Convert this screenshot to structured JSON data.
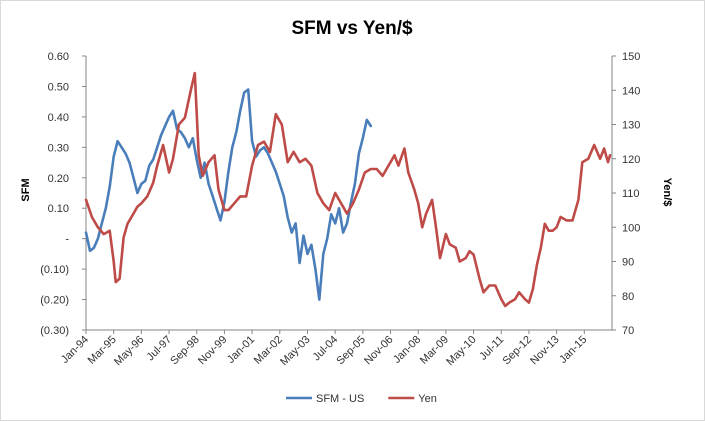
{
  "chart_data": {
    "type": "line",
    "title": "SFM vs Yen/$",
    "ylabel_left": "SFM",
    "ylabel_right": "Yen/$",
    "y_left_ticks": [
      "0.60",
      "0.50",
      "0.40",
      "0.30",
      "0.20",
      "0.10",
      "-",
      "(0.10)",
      "(0.20)",
      "(0.30)"
    ],
    "y_left_range": [
      -0.3,
      0.6
    ],
    "y_right_ticks": [
      "150",
      "140",
      "130",
      "120",
      "110",
      "100",
      "90",
      "80",
      "70"
    ],
    "y_right_range": [
      70,
      150
    ],
    "x_ticks": [
      "Jan-94",
      "Mar-95",
      "May-96",
      "Jul-97",
      "Sep-98",
      "Nov-99",
      "Jan-01",
      "Mar-02",
      "May-03",
      "Jul-04",
      "Sep-05",
      "Nov-06",
      "Jan-08",
      "Mar-09",
      "May-10",
      "Jul-11",
      "Sep-12",
      "Nov-13",
      "Jan-15"
    ],
    "grid": false,
    "legend_position": "bottom",
    "series": [
      {
        "name": "SFM - US",
        "axis": "left",
        "color": "#4a7ebb",
        "points": [
          [
            "Jan-94",
            0.02
          ],
          [
            "Mar-94",
            -0.04
          ],
          [
            "May-94",
            -0.03
          ],
          [
            "Jul-94",
            0.0
          ],
          [
            "Sep-94",
            0.05
          ],
          [
            "Nov-94",
            0.1
          ],
          [
            "Jan-95",
            0.17
          ],
          [
            "Mar-95",
            0.27
          ],
          [
            "May-95",
            0.32
          ],
          [
            "Jul-95",
            0.3
          ],
          [
            "Sep-95",
            0.28
          ],
          [
            "Nov-95",
            0.25
          ],
          [
            "Jan-96",
            0.2
          ],
          [
            "Mar-96",
            0.15
          ],
          [
            "May-96",
            0.18
          ],
          [
            "Jul-96",
            0.19
          ],
          [
            "Sep-96",
            0.24
          ],
          [
            "Nov-96",
            0.26
          ],
          [
            "Jan-97",
            0.3
          ],
          [
            "Mar-97",
            0.34
          ],
          [
            "May-97",
            0.37
          ],
          [
            "Jul-97",
            0.4
          ],
          [
            "Sep-97",
            0.42
          ],
          [
            "Nov-97",
            0.36
          ],
          [
            "Jan-98",
            0.35
          ],
          [
            "Mar-98",
            0.33
          ],
          [
            "May-98",
            0.3
          ],
          [
            "Jul-98",
            0.33
          ],
          [
            "Sep-98",
            0.26
          ],
          [
            "Nov-98",
            0.2
          ],
          [
            "Jan-99",
            0.25
          ],
          [
            "Mar-99",
            0.18
          ],
          [
            "May-99",
            0.14
          ],
          [
            "Jul-99",
            0.1
          ],
          [
            "Sep-99",
            0.06
          ],
          [
            "Nov-99",
            0.12
          ],
          [
            "Jan-00",
            0.22
          ],
          [
            "Mar-00",
            0.3
          ],
          [
            "May-00",
            0.35
          ],
          [
            "Jul-00",
            0.42
          ],
          [
            "Sep-00",
            0.48
          ],
          [
            "Nov-00",
            0.49
          ],
          [
            "Jan-01",
            0.32
          ],
          [
            "Mar-01",
            0.27
          ],
          [
            "May-01",
            0.29
          ],
          [
            "Jul-01",
            0.3
          ],
          [
            "Sep-01",
            0.28
          ],
          [
            "Nov-01",
            0.25
          ],
          [
            "Jan-02",
            0.22
          ],
          [
            "Mar-02",
            0.18
          ],
          [
            "May-02",
            0.14
          ],
          [
            "Jul-02",
            0.07
          ],
          [
            "Sep-02",
            0.02
          ],
          [
            "Nov-02",
            0.05
          ],
          [
            "Jan-03",
            -0.08
          ],
          [
            "Mar-03",
            0.01
          ],
          [
            "May-03",
            -0.05
          ],
          [
            "Jul-03",
            -0.02
          ],
          [
            "Sep-03",
            -0.1
          ],
          [
            "Nov-03",
            -0.2
          ],
          [
            "Jan-04",
            -0.05
          ],
          [
            "Mar-04",
            0.0
          ],
          [
            "May-04",
            0.08
          ],
          [
            "Jul-04",
            0.05
          ],
          [
            "Sep-04",
            0.1
          ],
          [
            "Nov-04",
            0.02
          ],
          [
            "Jan-05",
            0.05
          ],
          [
            "Mar-05",
            0.12
          ],
          [
            "May-05",
            0.18
          ],
          [
            "Jul-05",
            0.28
          ],
          [
            "Sep-05",
            0.33
          ],
          [
            "Nov-05",
            0.39
          ],
          [
            "Jan-06",
            0.37
          ]
        ]
      },
      {
        "name": "Yen",
        "axis": "right",
        "color": "#be4b48",
        "points": [
          [
            "Jan-94",
            108
          ],
          [
            "Apr-94",
            103
          ],
          [
            "Jul-94",
            100
          ],
          [
            "Oct-94",
            98
          ],
          [
            "Jan-95",
            99
          ],
          [
            "Mar-95",
            90
          ],
          [
            "Apr-95",
            84
          ],
          [
            "Jun-95",
            85
          ],
          [
            "Aug-95",
            97
          ],
          [
            "Oct-95",
            101
          ],
          [
            "Dec-95",
            103
          ],
          [
            "Mar-96",
            106
          ],
          [
            "May-96",
            107
          ],
          [
            "Aug-96",
            109
          ],
          [
            "Nov-96",
            113
          ],
          [
            "Jan-97",
            118
          ],
          [
            "Apr-97",
            124
          ],
          [
            "Jul-97",
            116
          ],
          [
            "Sep-97",
            120
          ],
          [
            "Dec-97",
            130
          ],
          [
            "Mar-98",
            132
          ],
          [
            "Jun-98",
            140
          ],
          [
            "Aug-98",
            145
          ],
          [
            "Oct-98",
            121
          ],
          [
            "Dec-98",
            115
          ],
          [
            "Mar-99",
            119
          ],
          [
            "Jun-99",
            121
          ],
          [
            "Aug-99",
            111
          ],
          [
            "Nov-99",
            105
          ],
          [
            "Jan-00",
            105
          ],
          [
            "Apr-00",
            107
          ],
          [
            "Jul-00",
            109
          ],
          [
            "Oct-00",
            109
          ],
          [
            "Jan-01",
            118
          ],
          [
            "Apr-01",
            124
          ],
          [
            "Jul-01",
            125
          ],
          [
            "Oct-01",
            122
          ],
          [
            "Jan-02",
            133
          ],
          [
            "Apr-02",
            130
          ],
          [
            "Jul-02",
            119
          ],
          [
            "Oct-02",
            122
          ],
          [
            "Jan-03",
            119
          ],
          [
            "Apr-03",
            120
          ],
          [
            "Jul-03",
            118
          ],
          [
            "Oct-03",
            110
          ],
          [
            "Jan-04",
            107
          ],
          [
            "Apr-04",
            105
          ],
          [
            "Jul-04",
            110
          ],
          [
            "Oct-04",
            107
          ],
          [
            "Jan-05",
            104
          ],
          [
            "Apr-05",
            107
          ],
          [
            "Jul-05",
            111
          ],
          [
            "Oct-05",
            116
          ],
          [
            "Jan-06",
            117
          ],
          [
            "Apr-06",
            117
          ],
          [
            "Jul-06",
            115
          ],
          [
            "Oct-06",
            118
          ],
          [
            "Jan-07",
            121
          ],
          [
            "Mar-07",
            118
          ],
          [
            "Jun-07",
            123
          ],
          [
            "Aug-07",
            116
          ],
          [
            "Nov-07",
            111
          ],
          [
            "Jan-08",
            107
          ],
          [
            "Mar-08",
            100
          ],
          [
            "May-08",
            104
          ],
          [
            "Aug-08",
            108
          ],
          [
            "Oct-08",
            100
          ],
          [
            "Dec-08",
            91
          ],
          [
            "Mar-09",
            98
          ],
          [
            "May-09",
            95
          ],
          [
            "Aug-09",
            94
          ],
          [
            "Oct-09",
            90
          ],
          [
            "Jan-10",
            91
          ],
          [
            "Mar-10",
            93
          ],
          [
            "May-10",
            92
          ],
          [
            "Aug-10",
            85
          ],
          [
            "Oct-10",
            81
          ],
          [
            "Jan-11",
            83
          ],
          [
            "Apr-11",
            83
          ],
          [
            "Jul-11",
            79
          ],
          [
            "Sep-11",
            77
          ],
          [
            "Nov-11",
            78
          ],
          [
            "Feb-12",
            79
          ],
          [
            "Apr-12",
            81
          ],
          [
            "Jul-12",
            79
          ],
          [
            "Sep-12",
            78
          ],
          [
            "Nov-12",
            82
          ],
          [
            "Jan-13",
            89
          ],
          [
            "Mar-13",
            94
          ],
          [
            "May-13",
            101
          ],
          [
            "Jul-13",
            99
          ],
          [
            "Sep-13",
            99
          ],
          [
            "Nov-13",
            100
          ],
          [
            "Jan-14",
            103
          ],
          [
            "Apr-14",
            102
          ],
          [
            "Jul-14",
            102
          ],
          [
            "Oct-14",
            108
          ],
          [
            "Dec-14",
            119
          ],
          [
            "Mar-15",
            120
          ],
          [
            "Jun-15",
            124
          ],
          [
            "Sep-15",
            120
          ],
          [
            "Nov-15",
            123
          ],
          [
            "Jan-16",
            119
          ],
          [
            "Feb-16",
            121
          ]
        ]
      }
    ]
  }
}
